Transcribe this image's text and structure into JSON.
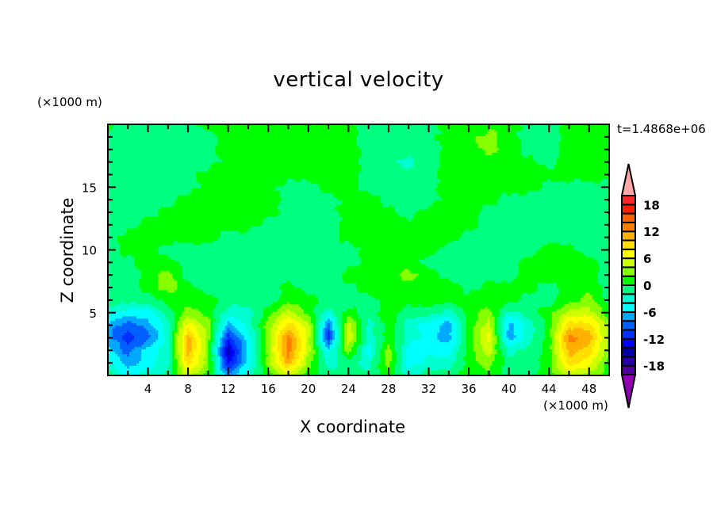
{
  "chart_data": {
    "type": "heatmap",
    "subtype": "filled-contour",
    "title": "vertical velocity",
    "xlabel": "X coordinate",
    "ylabel": "Z coordinate",
    "x_unit": "(×1000 m)",
    "y_unit": "(×1000 m)",
    "time_label": "t=1.4868e+06",
    "xlim": [
      0,
      50
    ],
    "ylim": [
      0,
      20
    ],
    "x_ticks": [
      "4",
      "8",
      "12",
      "16",
      "20",
      "24",
      "28",
      "32",
      "36",
      "40",
      "44",
      "48"
    ],
    "x_tick_values": [
      4,
      8,
      12,
      16,
      20,
      24,
      28,
      32,
      36,
      40,
      44,
      48
    ],
    "y_ticks": [
      "5",
      "10",
      "15"
    ],
    "y_tick_values": [
      5,
      10,
      15
    ],
    "grid_x": [
      0,
      2,
      4,
      6,
      8,
      10,
      12,
      14,
      16,
      18,
      20,
      22,
      24,
      26,
      28,
      30,
      32,
      34,
      36,
      38,
      40,
      42,
      44,
      46,
      48,
      50
    ],
    "grid_z": [
      20,
      19,
      18,
      17,
      16,
      15,
      14,
      13,
      12,
      11,
      10,
      9,
      8,
      7,
      6,
      5,
      4,
      3,
      2,
      1,
      0
    ],
    "values": [
      [
        1,
        -1,
        -1,
        -1,
        -1,
        1,
        1,
        1,
        1,
        1,
        1,
        1,
        1,
        -1,
        -1,
        -1,
        -1,
        1,
        1,
        1,
        1,
        -1,
        -1,
        1,
        1,
        1
      ],
      [
        -1,
        -1,
        -1,
        -1,
        -1,
        -1,
        1,
        1,
        1,
        1,
        1,
        1,
        1,
        -1,
        -1,
        -1,
        -1,
        1,
        1,
        3,
        1,
        -1,
        -1,
        1,
        1,
        1
      ],
      [
        -1,
        -1,
        -1,
        -1,
        -1,
        -1,
        1,
        1,
        1,
        1,
        1,
        1,
        1,
        -1,
        -1,
        -1,
        -1,
        1,
        1,
        3,
        1,
        -1,
        -1,
        1,
        1,
        1
      ],
      [
        -1,
        -1,
        -1,
        -1,
        -1,
        -1,
        1,
        1,
        1,
        1,
        1,
        1,
        1,
        -1,
        -1,
        -3,
        -1,
        1,
        1,
        1,
        1,
        1,
        -1,
        1,
        1,
        1
      ],
      [
        -1,
        -1,
        -1,
        -1,
        -1,
        1,
        1,
        1,
        1,
        1,
        1,
        1,
        1,
        -1,
        -1,
        -1,
        -1,
        1,
        1,
        1,
        1,
        1,
        1,
        1,
        1,
        1
      ],
      [
        -1,
        -1,
        -1,
        -1,
        -1,
        1,
        1,
        1,
        1,
        -1,
        -1,
        1,
        1,
        -1,
        -1,
        -1,
        -1,
        1,
        1,
        1,
        1,
        1,
        -1,
        -1,
        -1,
        -1
      ],
      [
        -1,
        -1,
        -1,
        -1,
        1,
        1,
        1,
        1,
        1,
        -1,
        -1,
        -1,
        1,
        1,
        -1,
        -1,
        -1,
        1,
        1,
        1,
        -1,
        -1,
        -1,
        -1,
        -1,
        -1
      ],
      [
        -1,
        -1,
        -1,
        1,
        1,
        1,
        1,
        1,
        1,
        -1,
        -1,
        -1,
        1,
        1,
        1,
        -1,
        1,
        1,
        1,
        -1,
        -1,
        -1,
        -1,
        -1,
        -1,
        -1
      ],
      [
        -1,
        -1,
        1,
        1,
        1,
        1,
        1,
        1,
        -1,
        -1,
        -1,
        -1,
        1,
        1,
        1,
        1,
        1,
        1,
        1,
        -1,
        -1,
        -1,
        -1,
        -1,
        -1,
        -1
      ],
      [
        -1,
        1,
        1,
        1,
        1,
        1,
        -1,
        -1,
        -1,
        -1,
        -1,
        -1,
        1,
        1,
        1,
        1,
        1,
        1,
        -1,
        -1,
        -1,
        -1,
        -1,
        -1,
        -1,
        -1
      ],
      [
        -1,
        1,
        1,
        -1,
        -1,
        -1,
        -1,
        -1,
        -1,
        -1,
        -1,
        -1,
        -1,
        1,
        1,
        1,
        1,
        -1,
        -1,
        -1,
        -1,
        -1,
        1,
        1,
        -1,
        -1
      ],
      [
        -1,
        -1,
        1,
        1,
        -1,
        -1,
        -1,
        -1,
        -1,
        -1,
        -1,
        -1,
        -1,
        1,
        1,
        1,
        -1,
        -1,
        -1,
        -1,
        -1,
        1,
        1,
        1,
        1,
        -1
      ],
      [
        -1,
        -1,
        1,
        3,
        -1,
        -1,
        -1,
        -1,
        -1,
        -1,
        -1,
        -1,
        1,
        1,
        1,
        3,
        1,
        -1,
        -1,
        -1,
        -1,
        1,
        1,
        1,
        1,
        -1
      ],
      [
        -1,
        -1,
        1,
        3,
        1,
        -1,
        -1,
        -1,
        -1,
        1,
        -1,
        -1,
        -1,
        1,
        1,
        1,
        1,
        1,
        -1,
        1,
        1,
        1,
        -1,
        1,
        1,
        -1
      ],
      [
        -1,
        -1,
        -1,
        1,
        1,
        1,
        -1,
        -1,
        -1,
        1,
        1,
        -1,
        -1,
        -1,
        1,
        1,
        1,
        1,
        1,
        1,
        1,
        -1,
        -1,
        1,
        3,
        -1
      ],
      [
        -3,
        -5,
        -5,
        -1,
        3,
        1,
        -3,
        -3,
        1,
        5,
        1,
        -3,
        1,
        -1,
        1,
        -1,
        -1,
        -3,
        1,
        3,
        -3,
        -1,
        1,
        5,
        5,
        1
      ],
      [
        -7,
        -9,
        -7,
        -3,
        7,
        3,
        -7,
        -3,
        3,
        9,
        5,
        -9,
        5,
        -3,
        1,
        -3,
        -5,
        -7,
        1,
        5,
        -7,
        -3,
        1,
        9,
        9,
        3
      ],
      [
        -7,
        -11,
        -9,
        -3,
        11,
        3,
        -11,
        -5,
        3,
        13,
        5,
        -11,
        6,
        -3,
        1,
        -3,
        -5,
        -7,
        1,
        7,
        -7,
        -3,
        1,
        13,
        11,
        3
      ],
      [
        -5,
        -9,
        -5,
        -3,
        11,
        3,
        -15,
        -5,
        3,
        13,
        5,
        -5,
        3,
        -5,
        3,
        -5,
        -5,
        -5,
        1,
        5,
        -3,
        -1,
        1,
        11,
        9,
        3
      ],
      [
        -3,
        -7,
        -5,
        -3,
        9,
        3,
        -13,
        -5,
        3,
        11,
        3,
        -3,
        -1,
        -3,
        3,
        -5,
        -3,
        -3,
        1,
        3,
        -1,
        -1,
        1,
        9,
        7,
        1
      ],
      [
        -1,
        -5,
        -3,
        -1,
        5,
        1,
        -7,
        -3,
        1,
        5,
        1,
        -1,
        -1,
        -1,
        1,
        -3,
        -1,
        -1,
        1,
        1,
        -1,
        -1,
        1,
        5,
        3,
        1
      ]
    ],
    "colorbar": {
      "levels_min": -20,
      "levels_max": 20,
      "level_step": 2,
      "tick_labels": [
        "18",
        "12",
        "6",
        "0",
        "-6",
        "-12",
        "-18"
      ],
      "tick_values": [
        18,
        12,
        6,
        0,
        -6,
        -12,
        -18
      ],
      "colors": [
        "#5000a0",
        "#2a00a8",
        "#0000a8",
        "#0000ff",
        "#0030ff",
        "#0060ff",
        "#00a8ff",
        "#00ffff",
        "#00ffd0",
        "#00ff80",
        "#00ff00",
        "#88ff00",
        "#ccff00",
        "#ffff00",
        "#ffe000",
        "#ffb000",
        "#ff8000",
        "#ff6000",
        "#ff2000",
        "#ff2828"
      ],
      "under_color": "#9000b0",
      "over_color": "#ffa8a8"
    }
  }
}
